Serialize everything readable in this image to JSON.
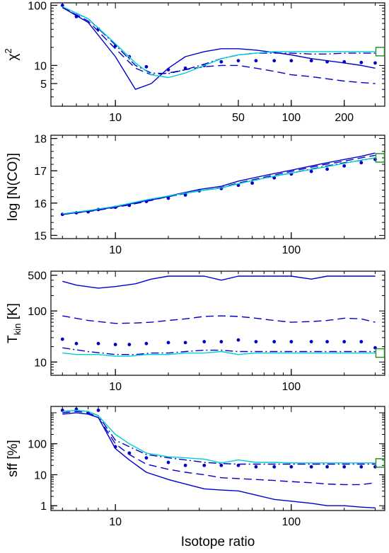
{
  "chart_data": [
    {
      "type": "line",
      "xscale": "log",
      "yscale": "log",
      "xlim": [
        4.3,
        340
      ],
      "ylim": [
        2.1,
        110
      ],
      "xticks": [
        10,
        50,
        100,
        200
      ],
      "xtick_labels": [
        "10",
        "50",
        "100",
        "200"
      ],
      "yticks": [
        5,
        10,
        100
      ],
      "ytick_labels": [
        "5",
        "10",
        "100"
      ],
      "ylabel": "χ",
      "ylabel_sup": "2",
      "xlabel": "",
      "series": [
        {
          "style": "solid",
          "color": "#0000cd",
          "x": [
            5,
            7,
            10,
            13,
            16,
            20,
            25,
            32,
            40,
            50,
            63,
            80,
            100,
            130,
            160,
            200,
            250,
            300
          ],
          "y": [
            92,
            52,
            14,
            4.0,
            5.0,
            9,
            14,
            17,
            19,
            19,
            18,
            16.5,
            15,
            13,
            12,
            11,
            10,
            9
          ]
        },
        {
          "style": "dashed",
          "color": "#0000cd",
          "x": [
            5,
            7,
            10,
            13,
            16,
            20,
            25,
            32,
            40,
            50,
            63,
            80,
            100,
            130,
            160,
            200,
            250,
            300
          ],
          "y": [
            92,
            55,
            19,
            9,
            7.0,
            7.5,
            8.5,
            9.5,
            10,
            10,
            9,
            8,
            7,
            6.5,
            6,
            5.5,
            5.2,
            5.0
          ]
        },
        {
          "style": "dotted",
          "color": "#0000cd",
          "x": [
            5,
            6,
            8,
            10,
            12,
            15,
            20,
            25,
            32,
            40,
            50,
            63,
            80,
            100,
            130,
            160,
            200,
            250,
            300
          ],
          "y": [
            100,
            65,
            40,
            21,
            14,
            9.5,
            8.5,
            9.0,
            10,
            11.5,
            12,
            12,
            12,
            12,
            12,
            11.5,
            11.5,
            11.2,
            11
          ]
        },
        {
          "style": "dashdot",
          "color": "#0000cd",
          "x": [
            5,
            7,
            10,
            13,
            16,
            20,
            25,
            32,
            40,
            50,
            63,
            80,
            100,
            130,
            160,
            200,
            250,
            300
          ],
          "y": [
            93,
            60,
            22,
            10,
            7.5,
            7.3,
            8.5,
            10.5,
            13,
            15,
            16,
            16,
            16,
            15.5,
            15.5,
            16,
            16,
            16
          ]
        },
        {
          "style": "solid",
          "color": "#00ced1",
          "x": [
            5,
            7,
            10,
            13,
            16,
            20,
            25,
            32,
            40,
            50,
            63,
            80,
            100,
            130,
            160,
            200,
            250,
            300
          ],
          "y": [
            95,
            60,
            23,
            11,
            7.0,
            6.3,
            7.5,
            10,
            13,
            15,
            16,
            17,
            17,
            17,
            17,
            17,
            17,
            17
          ]
        }
      ],
      "marker": {
        "shape": "square",
        "color": "#228b22",
        "x": 320,
        "y": 17
      }
    },
    {
      "type": "line",
      "xscale": "log",
      "yscale": "linear",
      "xlim": [
        4.3,
        340
      ],
      "ylim": [
        14.9,
        18.1
      ],
      "xticks": [
        10,
        100
      ],
      "xtick_labels": [
        "10",
        "100"
      ],
      "yticks": [
        15,
        16,
        17,
        18
      ],
      "ytick_labels": [
        "15",
        "16",
        "17",
        "18"
      ],
      "ylabel": "log [N(CO)]",
      "xlabel": "",
      "series": [
        {
          "style": "solid",
          "color": "#0000cd",
          "x": [
            5,
            7,
            10,
            15,
            20,
            30,
            40,
            50,
            70,
            100,
            150,
            200,
            250,
            300
          ],
          "y": [
            15.65,
            15.75,
            15.88,
            16.08,
            16.22,
            16.42,
            16.52,
            16.68,
            16.85,
            17.02,
            17.22,
            17.35,
            17.45,
            17.55
          ]
        },
        {
          "style": "dashed",
          "color": "#0000cd",
          "x": [
            5,
            7,
            10,
            15,
            20,
            30,
            40,
            50,
            70,
            100,
            150,
            200,
            250,
            300
          ],
          "y": [
            15.65,
            15.74,
            15.86,
            16.05,
            16.2,
            16.38,
            16.48,
            16.62,
            16.8,
            16.98,
            17.18,
            17.3,
            17.4,
            17.48
          ]
        },
        {
          "style": "dotted",
          "color": "#0000cd",
          "x": [
            5,
            6,
            7,
            8,
            10,
            12,
            15,
            20,
            25,
            30,
            40,
            50,
            60,
            80,
            100,
            130,
            160,
            200,
            250,
            300
          ],
          "y": [
            15.65,
            15.7,
            15.73,
            15.8,
            15.87,
            15.93,
            16.05,
            16.15,
            16.25,
            16.38,
            16.45,
            16.55,
            16.62,
            16.78,
            16.9,
            16.98,
            17.05,
            17.15,
            17.25,
            17.35
          ]
        },
        {
          "style": "dashdot",
          "color": "#0000cd",
          "x": [
            5,
            7,
            10,
            15,
            20,
            30,
            40,
            50,
            70,
            100,
            150,
            200,
            250,
            300
          ],
          "y": [
            15.66,
            15.75,
            15.88,
            16.07,
            16.2,
            16.38,
            16.47,
            16.6,
            16.77,
            16.93,
            17.12,
            17.25,
            17.32,
            17.4
          ]
        },
        {
          "style": "solid",
          "color": "#00ced1",
          "x": [
            5,
            7,
            10,
            15,
            20,
            30,
            40,
            50,
            70,
            100,
            150,
            200,
            250,
            300
          ],
          "y": [
            15.67,
            15.77,
            15.9,
            16.1,
            16.22,
            16.38,
            16.47,
            16.6,
            16.77,
            16.93,
            17.1,
            17.23,
            17.33,
            17.4
          ]
        }
      ],
      "marker": {
        "shape": "square",
        "color": "#228b22",
        "x": 320,
        "y": 17.4
      }
    },
    {
      "type": "line",
      "xscale": "log",
      "yscale": "log",
      "xlim": [
        4.3,
        340
      ],
      "ylim": [
        5.5,
        600
      ],
      "xticks": [
        10,
        100
      ],
      "xtick_labels": [
        "10",
        "100"
      ],
      "yticks": [
        10,
        100,
        500
      ],
      "ytick_labels": [
        "10",
        "100",
        "500"
      ],
      "ylabel": "T",
      "ylabel_sub": "kin",
      "ylabel_suffix": " [K]",
      "xlabel": "",
      "series": [
        {
          "style": "solid",
          "color": "#0000cd",
          "x": [
            5,
            6,
            8,
            10,
            13,
            16,
            20,
            25,
            32,
            40,
            50,
            63,
            80,
            100,
            130,
            160,
            200,
            250,
            300
          ],
          "y": [
            380,
            320,
            280,
            300,
            340,
            420,
            480,
            480,
            480,
            400,
            480,
            480,
            480,
            480,
            420,
            480,
            480,
            480,
            480
          ]
        },
        {
          "style": "dashed",
          "color": "#0000cd",
          "x": [
            5,
            7,
            10,
            13,
            16,
            20,
            25,
            32,
            40,
            50,
            63,
            80,
            100,
            130,
            160,
            200,
            250,
            300
          ],
          "y": [
            80,
            65,
            57,
            58,
            60,
            65,
            70,
            78,
            80,
            78,
            72,
            65,
            60,
            62,
            65,
            72,
            70,
            60
          ]
        },
        {
          "style": "dotted",
          "color": "#0000cd",
          "x": [
            5,
            6,
            8,
            10,
            12,
            15,
            20,
            25,
            32,
            40,
            50,
            63,
            80,
            100,
            130,
            160,
            200,
            250,
            300
          ],
          "y": [
            28,
            23,
            23,
            22,
            22,
            23,
            24,
            24,
            25,
            25,
            27,
            25,
            25,
            25,
            25,
            25,
            25,
            25,
            19
          ]
        },
        {
          "style": "dashdot",
          "color": "#0000cd",
          "x": [
            5,
            7,
            10,
            13,
            16,
            20,
            25,
            32,
            40,
            50,
            63,
            80,
            100,
            130,
            160,
            200,
            250,
            300
          ],
          "y": [
            19,
            16,
            14,
            14,
            15,
            15,
            16,
            17,
            17,
            16,
            16,
            16,
            16,
            16,
            16,
            16,
            16,
            16
          ]
        },
        {
          "style": "solid",
          "color": "#00ced1",
          "x": [
            5,
            6,
            8,
            10,
            12,
            15,
            20,
            25,
            32,
            40,
            50,
            63,
            80,
            100,
            130,
            160,
            200,
            250,
            300
          ],
          "y": [
            15,
            14,
            14,
            13,
            13,
            14,
            14,
            15,
            15,
            16,
            14,
            15,
            15,
            15,
            15,
            15,
            15,
            15,
            15
          ]
        }
      ],
      "marker": {
        "shape": "square",
        "color": "#228b22",
        "x": 320,
        "y": 15
      }
    },
    {
      "type": "line",
      "xscale": "log",
      "yscale": "log",
      "xlim": [
        4.3,
        340
      ],
      "ylim": [
        0.7,
        1600
      ],
      "xticks": [
        10,
        100
      ],
      "xtick_labels": [
        "10",
        "100"
      ],
      "yticks": [
        1,
        10,
        100
      ],
      "ytick_labels": [
        "1",
        "10",
        "100"
      ],
      "ylabel": "sff [%]",
      "xlabel": "Isotope ratio",
      "series": [
        {
          "style": "solid",
          "color": "#0000cd",
          "x": [
            5,
            6,
            7,
            8,
            10,
            12,
            15,
            20,
            25,
            32,
            40,
            50,
            63,
            80,
            100,
            130,
            160,
            200,
            250,
            300
          ],
          "y": [
            900,
            1000,
            900,
            700,
            70,
            30,
            12,
            7,
            5,
            3.5,
            3.2,
            3,
            2.2,
            1.6,
            1.4,
            1.2,
            1.0,
            1.0,
            0.9,
            0.85
          ]
        },
        {
          "style": "dashed",
          "color": "#0000cd",
          "x": [
            5,
            6,
            7,
            8,
            10,
            12,
            15,
            20,
            25,
            32,
            40,
            50,
            63,
            80,
            100,
            130,
            160,
            200,
            250,
            300
          ],
          "y": [
            1000,
            1100,
            1000,
            700,
            100,
            45,
            22,
            15,
            12,
            10,
            8,
            7.5,
            7,
            6.5,
            6,
            5.5,
            5,
            4.8,
            4.8,
            5.5
          ]
        },
        {
          "style": "dotted",
          "color": "#0000cd",
          "x": [
            5,
            6,
            7,
            8,
            10,
            12,
            15,
            20,
            25,
            32,
            40,
            50,
            63,
            80,
            100,
            130,
            160,
            200,
            250,
            300
          ],
          "y": [
            1200,
            1300,
            1000,
            1200,
            80,
            50,
            35,
            25,
            20,
            20,
            20,
            20,
            18,
            18,
            18,
            18,
            18,
            18,
            18,
            18
          ]
        },
        {
          "style": "dashdot",
          "color": "#0000cd",
          "x": [
            5,
            6,
            7,
            8,
            10,
            12,
            15,
            20,
            25,
            32,
            40,
            50,
            63,
            80,
            100,
            130,
            160,
            200,
            250,
            300
          ],
          "y": [
            1100,
            1200,
            1100,
            800,
            130,
            80,
            45,
            35,
            30,
            25,
            23,
            22,
            22,
            22,
            22,
            22,
            22,
            22,
            22,
            22
          ]
        },
        {
          "style": "solid",
          "color": "#00ced1",
          "x": [
            5,
            6,
            7,
            8,
            10,
            12,
            15,
            20,
            25,
            32,
            40,
            50,
            63,
            80,
            100,
            130,
            160,
            200,
            250,
            300
          ],
          "y": [
            1100,
            1200,
            1100,
            800,
            200,
            100,
            50,
            38,
            35,
            32,
            24,
            30,
            25,
            25,
            24,
            24,
            24,
            24,
            24,
            24
          ]
        }
      ],
      "marker": {
        "shape": "square",
        "color": "#228b22",
        "x": 320,
        "y": 24
      }
    }
  ]
}
